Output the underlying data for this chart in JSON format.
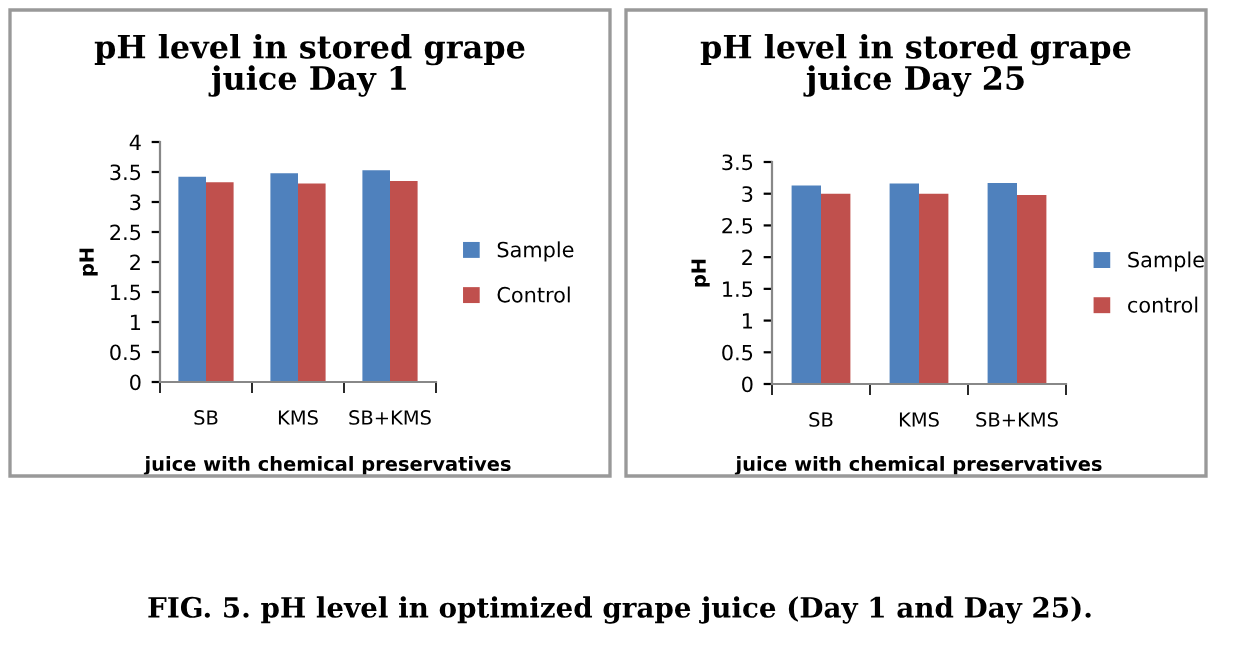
{
  "chart_data": [
    {
      "type": "bar",
      "title": "pH level in stored grape juice Day 1",
      "xlabel": "juice with chemical preservatives",
      "ylabel": "pH",
      "categories": [
        "SB",
        "KMS",
        "SB+KMS"
      ],
      "series": [
        {
          "name": "Sample",
          "color": "#4f81bd",
          "values": [
            3.42,
            3.48,
            3.53
          ]
        },
        {
          "name": "Control",
          "color": "#c0504d",
          "values": [
            3.33,
            3.31,
            3.35
          ]
        }
      ],
      "ylim": [
        0,
        4
      ],
      "yticks": [
        0,
        0.5,
        1,
        1.5,
        2,
        2.5,
        3,
        3.5,
        4
      ],
      "legend": "right",
      "grid": false,
      "annotations": [
        "FIG. 5. pH level in optimized grape juice (Day 1 and Day 25)."
      ]
    },
    {
      "type": "bar",
      "title": "pH level in stored grape juice Day 25",
      "xlabel": "juice with chemical preservatives",
      "ylabel": "pH",
      "categories": [
        "SB",
        "KMS",
        "SB+KMS"
      ],
      "series": [
        {
          "name": "Sample",
          "color": "#4f81bd",
          "values": [
            3.13,
            3.16,
            3.17
          ]
        },
        {
          "name": "control",
          "color": "#c0504d",
          "values": [
            3.0,
            3.0,
            2.98
          ]
        }
      ],
      "ylim": [
        0,
        3.5
      ],
      "yticks": [
        0,
        0.5,
        1,
        1.5,
        2,
        2.5,
        3,
        3.5
      ],
      "legend": "right",
      "grid": false
    }
  ]
}
